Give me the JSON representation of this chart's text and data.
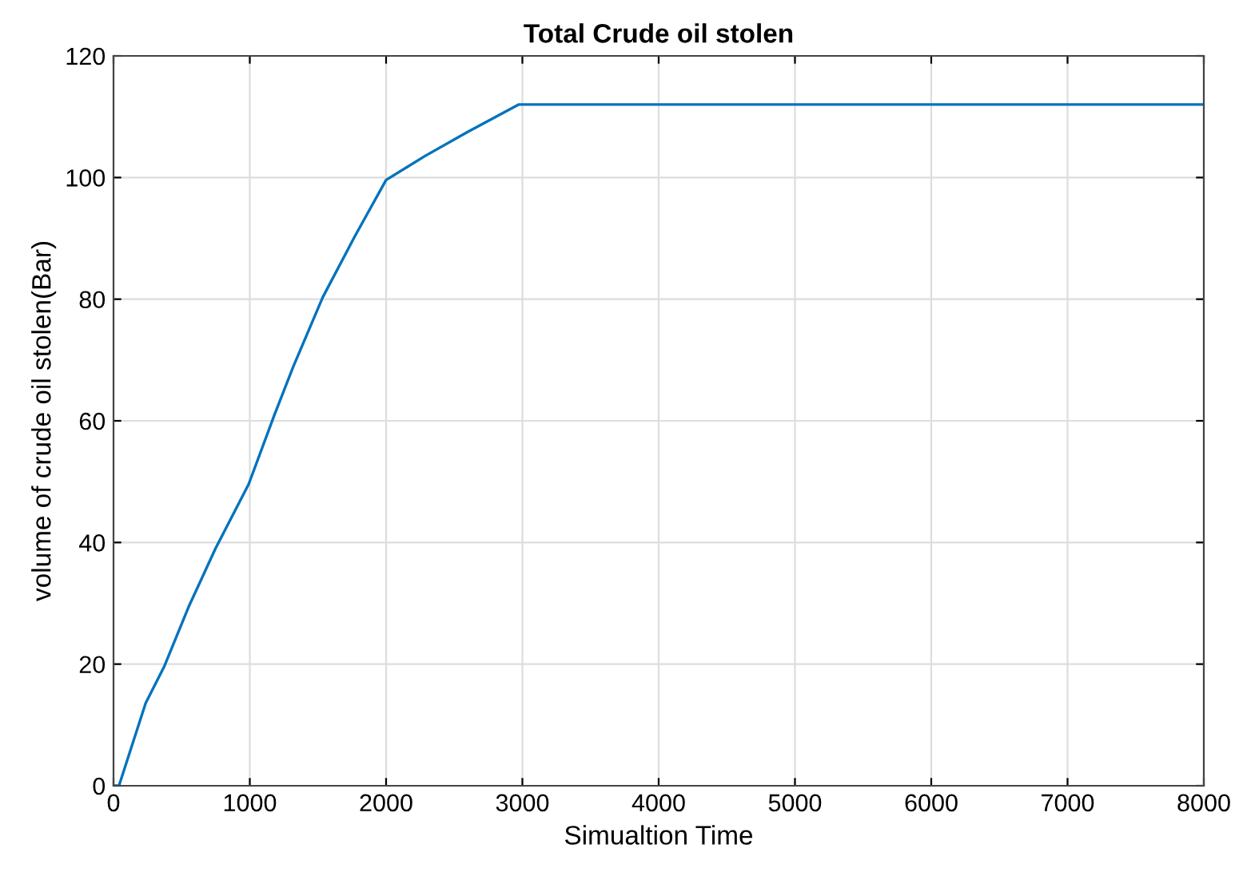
{
  "chart_data": {
    "type": "line",
    "title": "Total Crude oil stolen",
    "xlabel": "Simualtion Time",
    "ylabel": "volume of crude oil stolen(Bar)",
    "series": [
      {
        "color": "#0072bd",
        "x": [
          0,
          40,
          236,
          374,
          551,
          748,
          992,
          1181,
          1319,
          1535,
          1772,
          2000,
          2283,
          2598,
          2972,
          8000
        ],
        "values": [
          0,
          0,
          13.6,
          19.7,
          29.4,
          39,
          49.6,
          61,
          68.9,
          80.3,
          90.4,
          99.6,
          103.5,
          107.5,
          112,
          112
        ]
      }
    ],
    "xlim": [
      0,
      8000
    ],
    "ylim": [
      0,
      120
    ],
    "xticks": [
      0,
      1000,
      2000,
      3000,
      4000,
      5000,
      6000,
      7000,
      8000
    ],
    "yticks": [
      0,
      20,
      40,
      60,
      80,
      100,
      120
    ],
    "grid": true
  }
}
